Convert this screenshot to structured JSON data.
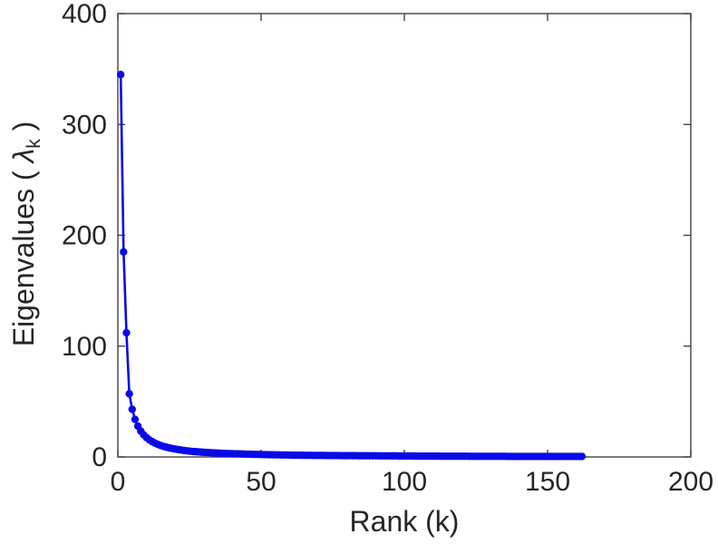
{
  "figure": {
    "background": "#ffffff",
    "axis_color": "#424242",
    "text_color": "#262626"
  },
  "labels": {
    "xlabel": "Rank (k)",
    "ylabel_prefix": "Eigenvalues ( ",
    "ylabel_lambda": "λ",
    "ylabel_subscript": "k",
    "ylabel_suffix": " )"
  },
  "chart_data": {
    "type": "line",
    "title": "",
    "xlabel": "Rank (k)",
    "ylabel": "Eigenvalues ( λ_k )",
    "xlim": [
      0,
      200
    ],
    "ylim": [
      0,
      400
    ],
    "xticks": [
      0,
      50,
      100,
      150,
      200
    ],
    "yticks": [
      0,
      100,
      200,
      300,
      400
    ],
    "grid": false,
    "legend": null,
    "series": [
      {
        "name": "eigenvalue-scree",
        "color": "#0a0ae8",
        "marker": "filled-circle",
        "marker_size": 4.2,
        "line_width": 2.6,
        "x_start": 1,
        "x_step": 1,
        "values": [
          345,
          185,
          112,
          57,
          43,
          33.9,
          27.8,
          23.3,
          20,
          17.5,
          15.4,
          13.8,
          12.4,
          11.3,
          10.3,
          9.5,
          8.8,
          8.1,
          7.6,
          7.1,
          6.7,
          6.3,
          5.9,
          5.6,
          5.3,
          5,
          4.8,
          4.6,
          4.4,
          4.2,
          4,
          3.9,
          3.7,
          3.6,
          3.5,
          3.3,
          3.2,
          3.1,
          3,
          2.9,
          2.8,
          2.8,
          2.7,
          2.6,
          2.5,
          2.5,
          2.4,
          2.3,
          2.3,
          2.2,
          2.1,
          2.1,
          2,
          2,
          1.9,
          1.9,
          1.8,
          1.8,
          1.8,
          1.7,
          1.7,
          1.6,
          1.6,
          1.6,
          1.5,
          1.5,
          1.5,
          1.4,
          1.4,
          1.4,
          1.4,
          1.4,
          1.3,
          1.3,
          1.3,
          1.3,
          1.3,
          1.2,
          1.2,
          1.2,
          1.2,
          1.2,
          1.2,
          1.1,
          1.1,
          1.1,
          1.1,
          1.1,
          1.1,
          1.1,
          1,
          1,
          1,
          1,
          1,
          1,
          1,
          0.9,
          0.9,
          0.9,
          0.9,
          0.9,
          0.9,
          0.8,
          0.8,
          0.8,
          0.8,
          0.8,
          0.8,
          0.8,
          0.8,
          0.8,
          0.7,
          0.7,
          0.7,
          0.7,
          0.7,
          0.7,
          0.7,
          0.7,
          0.7,
          0.7,
          0.6,
          0.6,
          0.6,
          0.6,
          0.6,
          0.6,
          0.6,
          0.6,
          0.6,
          0.6,
          0.6,
          0.6,
          0.6,
          0.5,
          0.5,
          0.5,
          0.5,
          0.5,
          0.5,
          0.5,
          0.5,
          0.5,
          0.5,
          0.5,
          0.5,
          0.5,
          0.5,
          0.5,
          0.5,
          0.5,
          0.5,
          0.5,
          0.5,
          0.5,
          0.5,
          0.5,
          0.5,
          0.5,
          0.5,
          0.5
        ]
      }
    ]
  }
}
